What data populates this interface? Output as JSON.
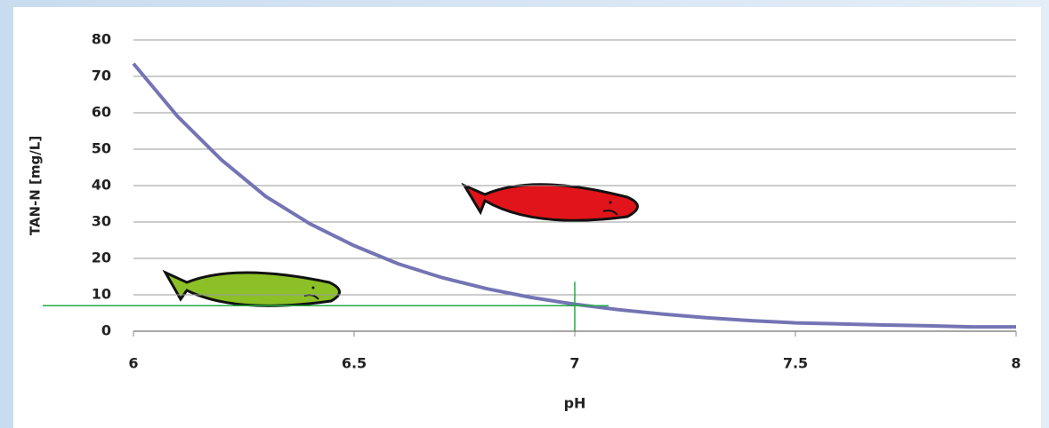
{
  "chart_data": {
    "type": "line",
    "x_label": "pH",
    "y_label": "TAN-N [mg/L]",
    "x": [
      6,
      6.1,
      6.2,
      6.3,
      6.4,
      6.5,
      6.6,
      6.7,
      6.8,
      6.9,
      7,
      7.1,
      7.2,
      7.3,
      7.4,
      7.5,
      7.6,
      7.7,
      7.8,
      7.9,
      8
    ],
    "values": [
      73.5,
      59,
      47,
      37,
      29.5,
      23.5,
      18.5,
      14.7,
      11.7,
      9.3,
      7.4,
      5.9,
      4.7,
      3.7,
      2.9,
      2.3,
      2,
      1.7,
      1.5,
      1.2,
      1.2
    ],
    "color": "#7474b4",
    "xlim": [
      6,
      8
    ],
    "xticks": [
      6,
      6.5,
      7,
      7.5,
      8
    ],
    "ylim": [
      0,
      80
    ],
    "yticks": [
      0,
      10,
      20,
      30,
      40,
      50,
      60,
      70,
      80
    ],
    "grid": true,
    "reference": {
      "x": 7,
      "y": 7,
      "color": "#22aa44"
    }
  }
}
